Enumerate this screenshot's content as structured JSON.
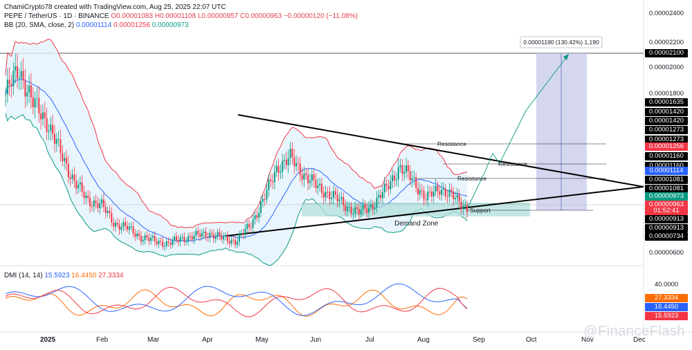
{
  "header": {
    "credit": "ChamiCrypto78 created with TradingView.com, Aug 25, 2025 22:07 UTC",
    "symbol": "PEPE / TetherUS · 1D · BINANCE",
    "ohlc_o": "O0.00001083",
    "ohlc_h": "H0.00001108",
    "ohlc_l": "L0.00000957",
    "ohlc_c": "C0.00000963",
    "ohlc_change": "−0.00000120 (−11.08%)",
    "bb_label": "BB (20, SMA, close, 2)",
    "bb_basis": "0.00001114",
    "bb_upper": "0.00001256",
    "bb_lower": "0.00000973"
  },
  "dmi": {
    "label": "DMI (14, 14)",
    "v1": "15.5923",
    "v2": "16.4450",
    "v3": "27.3334",
    "axis_label": "40.0000",
    "tag_orange": "27.3334",
    "tag_blue": "16.4450",
    "tag_red": "15.5923"
  },
  "price_axis_plain": [
    "0.00002400",
    "0.00002200",
    "0.00002000",
    "0.00001800",
    "0.00000600"
  ],
  "price_tags": [
    {
      "text": "0.00002100",
      "color": "#000000"
    },
    {
      "text": "0.00001635",
      "color": "#000000"
    },
    {
      "text": "0.00001420",
      "color": "#000000"
    },
    {
      "text": "0.00001420",
      "color": "#000000"
    },
    {
      "text": "0.00001273",
      "color": "#000000"
    },
    {
      "text": "0.00001273",
      "color": "#000000"
    },
    {
      "text": "0.00001256",
      "color": "#f23645"
    },
    {
      "text": "0.00001160",
      "color": "#000000"
    },
    {
      "text": "0.00001160",
      "color": "#000000"
    },
    {
      "text": "0.00001114",
      "color": "#2962ff"
    },
    {
      "text": "0.00001081",
      "color": "#000000"
    },
    {
      "text": "0.00001081",
      "color": "#000000"
    },
    {
      "text": "0.00000973",
      "color": "#089981"
    },
    {
      "text": "0.00000963",
      "color": "#f23645"
    },
    {
      "text": "01:52:41",
      "color": "#f23645"
    },
    {
      "text": "0.00000913",
      "color": "#000000"
    },
    {
      "text": "0.00000913",
      "color": "#000000"
    },
    {
      "text": "0.00000734",
      "color": "#000000"
    }
  ],
  "x_labels": [
    "2025",
    "Feb",
    "Mar",
    "Apr",
    "May",
    "Jun",
    "Jul",
    "Aug",
    "Sep",
    "Oct",
    "Nov",
    "Dec"
  ],
  "annotations": {
    "measure_box": "0.00001190 (130.42%) 1,190",
    "resistance_1": "Resistance",
    "resistance_2": "Resistance",
    "resistance_3": "Resistance",
    "support": "Support",
    "demand_zone": "Demand Zone"
  },
  "watermark": "@FinanceFlash",
  "colors": {
    "candle_up": "#089981",
    "candle_down": "#f23645",
    "bb_upper": "#f23645",
    "bb_basis": "#2962ff",
    "bb_lower": "#089981",
    "bb_fill": "#e3f2fd",
    "demand_zone": "#b2dfdb",
    "target_box": "#c5cae9"
  },
  "chart_data": {
    "type": "candlestick",
    "title": "PEPE / TetherUS · 1D · BINANCE",
    "x_range": [
      "2025-01-01",
      "2025-12-31"
    ],
    "ylim": [
      5.4e-06,
      2.48e-05
    ],
    "series": [
      {
        "name": "PEPE / TetherUS",
        "weekly_close": [
          1.85e-05,
          2.05e-05,
          1.78e-05,
          1.65e-05,
          1.4e-05,
          1.18e-05,
          1.02e-05,
          9.9e-06,
          8.4e-06,
          8e-06,
          7.3e-06,
          7e-06,
          6.8e-06,
          7.2e-06,
          7.4e-06,
          7.6e-06,
          7.2e-06,
          7e-06,
          8.2e-06,
          1.02e-05,
          1.28e-05,
          1.35e-05,
          1.22e-05,
          1.12e-05,
          1.06e-05,
          9.8e-06,
          9.2e-06,
          9.8e-06,
          1.1e-05,
          1.28e-05,
          1.18e-05,
          1.03e-05,
          1.12e-05,
          1.04e-05,
          9.6e-06
        ]
      },
      {
        "name": "BB upper",
        "last": 1.256e-05
      },
      {
        "name": "BB basis",
        "last": 1.114e-05
      },
      {
        "name": "BB lower",
        "last": 9.73e-06
      }
    ],
    "levels": {
      "target": 2.1e-05,
      "resistance": [
        1.273e-05,
        1.16e-05,
        1.081e-05
      ],
      "support": 9.13e-06,
      "demand_zone": [
        9.13e-06,
        9.73e-06
      ]
    },
    "dmi": {
      "di_plus": 27.3334,
      "adx": 16.445,
      "di_minus": 15.5923
    }
  }
}
